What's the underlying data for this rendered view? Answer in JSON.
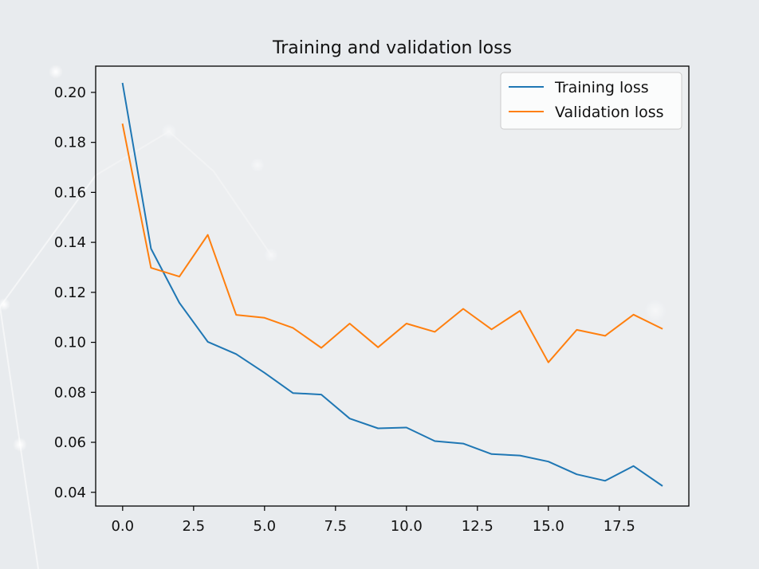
{
  "chart_data": {
    "type": "line",
    "title": "Training and validation loss",
    "xlabel": "",
    "ylabel": "",
    "x": [
      0,
      1,
      2,
      3,
      4,
      5,
      6,
      7,
      8,
      9,
      10,
      11,
      12,
      13,
      14,
      15,
      16,
      17,
      18,
      19
    ],
    "xlim": [
      -0.95,
      19.95
    ],
    "ylim": [
      0.0345,
      0.2105
    ],
    "xticks": [
      0.0,
      2.5,
      5.0,
      7.5,
      10.0,
      12.5,
      15.0,
      17.5
    ],
    "xtick_labels": [
      "0.0",
      "2.5",
      "5.0",
      "7.5",
      "10.0",
      "12.5",
      "15.0",
      "17.5"
    ],
    "yticks": [
      0.04,
      0.06,
      0.08,
      0.1,
      0.12,
      0.14,
      0.16,
      0.18,
      0.2
    ],
    "ytick_labels": [
      "0.04",
      "0.06",
      "0.08",
      "0.10",
      "0.12",
      "0.14",
      "0.16",
      "0.18",
      "0.20"
    ],
    "grid": false,
    "legend_position": "top-right",
    "series": [
      {
        "name": "Training loss",
        "color": "#1f77b4",
        "values": [
          0.2035,
          0.1375,
          0.1158,
          0.1002,
          0.0953,
          0.0878,
          0.0797,
          0.0791,
          0.0695,
          0.0656,
          0.0659,
          0.0605,
          0.0595,
          0.0553,
          0.0547,
          0.0523,
          0.0472,
          0.0446,
          0.0505,
          0.0427
        ]
      },
      {
        "name": "Validation loss",
        "color": "#ff7f0e",
        "values": [
          0.1872,
          0.1298,
          0.1263,
          0.143,
          0.111,
          0.1098,
          0.1058,
          0.0978,
          0.1075,
          0.098,
          0.1075,
          0.1042,
          0.1134,
          0.1052,
          0.1126,
          0.092,
          0.105,
          0.1026,
          0.1111,
          0.1055
        ]
      }
    ]
  }
}
